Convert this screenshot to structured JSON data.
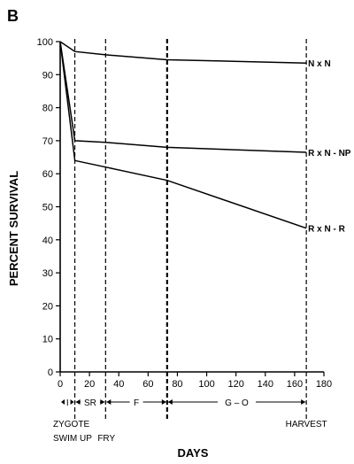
{
  "panel_label": "B",
  "chart_data": {
    "type": "line",
    "xlabel": "DAYS",
    "ylabel": "PERCENT SURVIVAL",
    "xlim": [
      0,
      180
    ],
    "ylim": [
      0,
      100
    ],
    "x_ticks": [
      0,
      20,
      40,
      60,
      80,
      100,
      120,
      140,
      160,
      180
    ],
    "y_ticks": [
      0,
      10,
      20,
      30,
      40,
      50,
      60,
      70,
      80,
      90,
      100
    ],
    "vlines": [
      10,
      31,
      73,
      168
    ],
    "series": [
      {
        "name": "N x N",
        "x": [
          0,
          10,
          31,
          73,
          168
        ],
        "y": [
          100,
          97,
          96,
          94.5,
          93.5
        ]
      },
      {
        "name": "R x N - NP",
        "x": [
          0,
          10,
          31,
          73,
          168
        ],
        "y": [
          100,
          70,
          69.5,
          68,
          66.5
        ]
      },
      {
        "name": "R x N - R",
        "x": [
          0,
          10,
          31,
          73,
          168
        ],
        "y": [
          100,
          64,
          62,
          58,
          43.5
        ]
      }
    ],
    "stages": [
      {
        "label": "I",
        "from": 0,
        "to": 10
      },
      {
        "label": "SR",
        "from": 10,
        "to": 31
      },
      {
        "label": "F",
        "from": 31,
        "to": 73
      },
      {
        "label": "G – O",
        "from": 73,
        "to": 168
      }
    ],
    "annotations": {
      "zygote": "ZYGOTE",
      "swim_up": "SWIM UP",
      "fry": "FRY",
      "harvest": "HARVEST"
    }
  }
}
